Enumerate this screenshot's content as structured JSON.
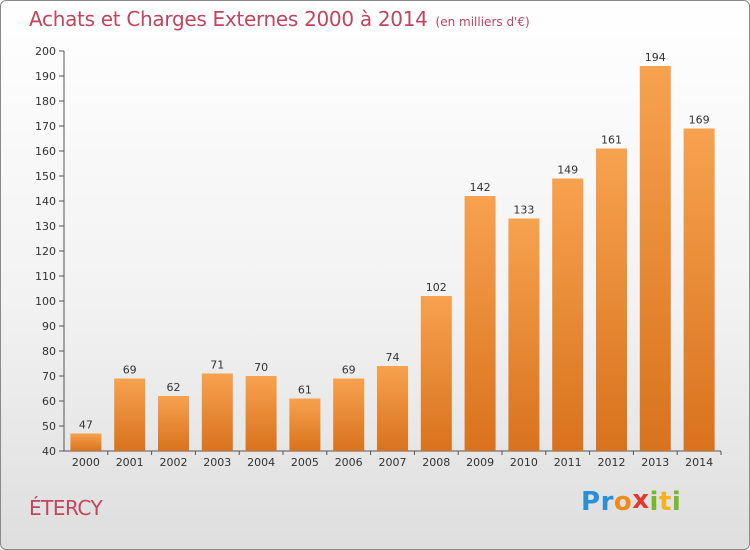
{
  "title": "Achats et Charges Externes 2000 à 2014",
  "unit": "(en milliers d'€)",
  "town": "ÉTERCY",
  "logo": {
    "letters": [
      "P",
      "r",
      "o",
      "x",
      "i",
      "t",
      "i"
    ],
    "colors": [
      "#2b8fd6",
      "#2b8fd6",
      "#f08a1c",
      "#e33a2c",
      "#76b82a",
      "#f5b21b",
      "#76b82a"
    ]
  },
  "colors": {
    "bar_light": "#f7a24f",
    "bar_dark": "#d9721c",
    "title": "#c0455e"
  },
  "chart_data": {
    "type": "bar",
    "categories": [
      "2000",
      "2001",
      "2002",
      "2003",
      "2004",
      "2005",
      "2006",
      "2007",
      "2008",
      "2009",
      "2010",
      "2011",
      "2012",
      "2013",
      "2014"
    ],
    "values": [
      47,
      69,
      62,
      71,
      70,
      61,
      69,
      74,
      102,
      142,
      133,
      149,
      161,
      194,
      169
    ],
    "data_labels": [
      "47",
      "69",
      "62",
      "71",
      "70",
      "61",
      "69",
      "74",
      "102",
      "142",
      "133",
      "149",
      "161",
      "194",
      "169"
    ],
    "ylim": [
      40,
      200
    ],
    "yticks": [
      40,
      50,
      60,
      70,
      80,
      90,
      100,
      110,
      120,
      130,
      140,
      150,
      160,
      170,
      180,
      190,
      200
    ],
    "grid": false,
    "legend": "none"
  }
}
